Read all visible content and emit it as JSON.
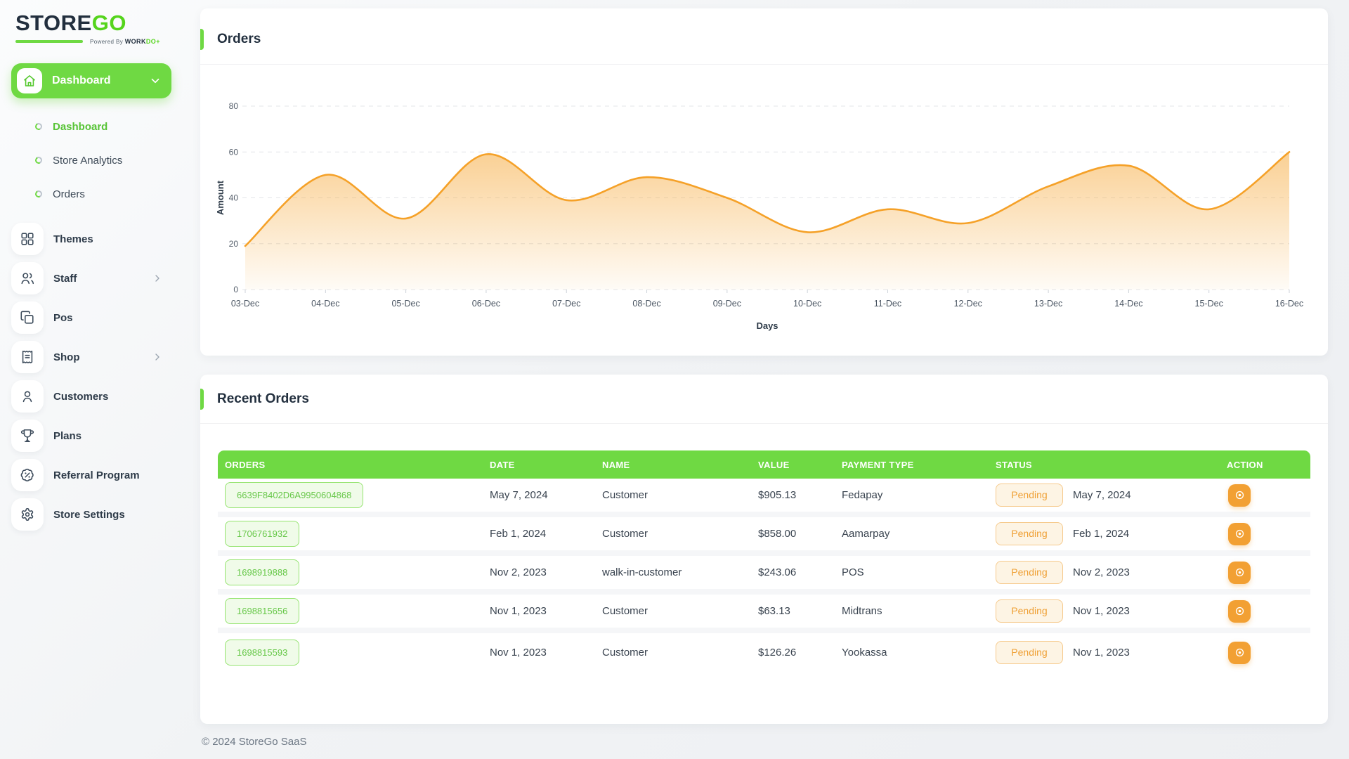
{
  "brand": {
    "name_primary": "STORE",
    "name_secondary": "GO",
    "tagline_prefix": "Powered By ",
    "tagline_brand": "WORK",
    "tagline_brand_accent": "DO",
    "tagline_mark": "+"
  },
  "sidebar": {
    "group_button": {
      "label": "Dashboard",
      "icon": "home"
    },
    "sub_items": [
      {
        "label": "Dashboard",
        "active": true
      },
      {
        "label": "Store Analytics",
        "active": false
      },
      {
        "label": "Orders",
        "active": false
      }
    ],
    "items": [
      {
        "label": "Themes",
        "icon": "grid",
        "chevron": false
      },
      {
        "label": "Staff",
        "icon": "users",
        "chevron": true
      },
      {
        "label": "Pos",
        "icon": "pos",
        "chevron": false
      },
      {
        "label": "Shop",
        "icon": "receipt",
        "chevron": true
      },
      {
        "label": "Customers",
        "icon": "user",
        "chevron": false
      },
      {
        "label": "Plans",
        "icon": "trophy",
        "chevron": false
      },
      {
        "label": "Referral Program",
        "icon": "badge-percent",
        "chevron": false
      },
      {
        "label": "Store Settings",
        "icon": "gear",
        "chevron": false
      }
    ]
  },
  "orders_card": {
    "title": "Orders"
  },
  "chart_data": {
    "type": "area",
    "title": "Orders",
    "x": [
      "03-Dec",
      "04-Dec",
      "05-Dec",
      "06-Dec",
      "07-Dec",
      "08-Dec",
      "09-Dec",
      "10-Dec",
      "11-Dec",
      "12-Dec",
      "13-Dec",
      "14-Dec",
      "15-Dec",
      "16-Dec"
    ],
    "series": [
      {
        "name": "Amount",
        "values": [
          19,
          50,
          31,
          59,
          39,
          49,
          40,
          25,
          35,
          29,
          45,
          54,
          35,
          60
        ]
      }
    ],
    "xlabel": "Days",
    "ylabel": "Amount",
    "ylim": [
      0,
      80
    ],
    "yticks": [
      0,
      20,
      40,
      60,
      80
    ],
    "grid": "dashed horizontal",
    "legend": "none",
    "line_color": "#f5a128",
    "fill": "orange gradient fading to white"
  },
  "recent_orders": {
    "title": "Recent Orders",
    "columns": [
      "ORDERS",
      "DATE",
      "NAME",
      "VALUE",
      "PAYMENT TYPE",
      "STATUS",
      "ACTION"
    ],
    "rows": [
      {
        "order_id": "6639F8402D6A9950604868",
        "date": "May 7, 2024",
        "name": "Customer",
        "value": "$905.13",
        "payment_type": "Fedapay",
        "status": "Pending",
        "status_date": "May 7, 2024"
      },
      {
        "order_id": "1706761932",
        "date": "Feb 1, 2024",
        "name": "Customer",
        "value": "$858.00",
        "payment_type": "Aamarpay",
        "status": "Pending",
        "status_date": "Feb 1, 2024"
      },
      {
        "order_id": "1698919888",
        "date": "Nov 2, 2023",
        "name": "walk-in-customer",
        "value": "$243.06",
        "payment_type": "POS",
        "status": "Pending",
        "status_date": "Nov 2, 2023"
      },
      {
        "order_id": "1698815656",
        "date": "Nov 1, 2023",
        "name": "Customer",
        "value": "$63.13",
        "payment_type": "Midtrans",
        "status": "Pending",
        "status_date": "Nov 1, 2023"
      },
      {
        "order_id": "1698815593",
        "date": "Nov 1, 2023",
        "name": "Customer",
        "value": "$126.26",
        "payment_type": "Yookassa",
        "status": "Pending",
        "status_date": "Nov 1, 2023"
      }
    ]
  },
  "footer": {
    "copyright": "© 2024 StoreGo SaaS"
  },
  "colors": {
    "primary_green": "#6fd943",
    "logo_green": "#55d41c",
    "chart_orange": "#f5a128",
    "pending_orange": "#ef9f33",
    "dark_navy": "#222f3e"
  }
}
